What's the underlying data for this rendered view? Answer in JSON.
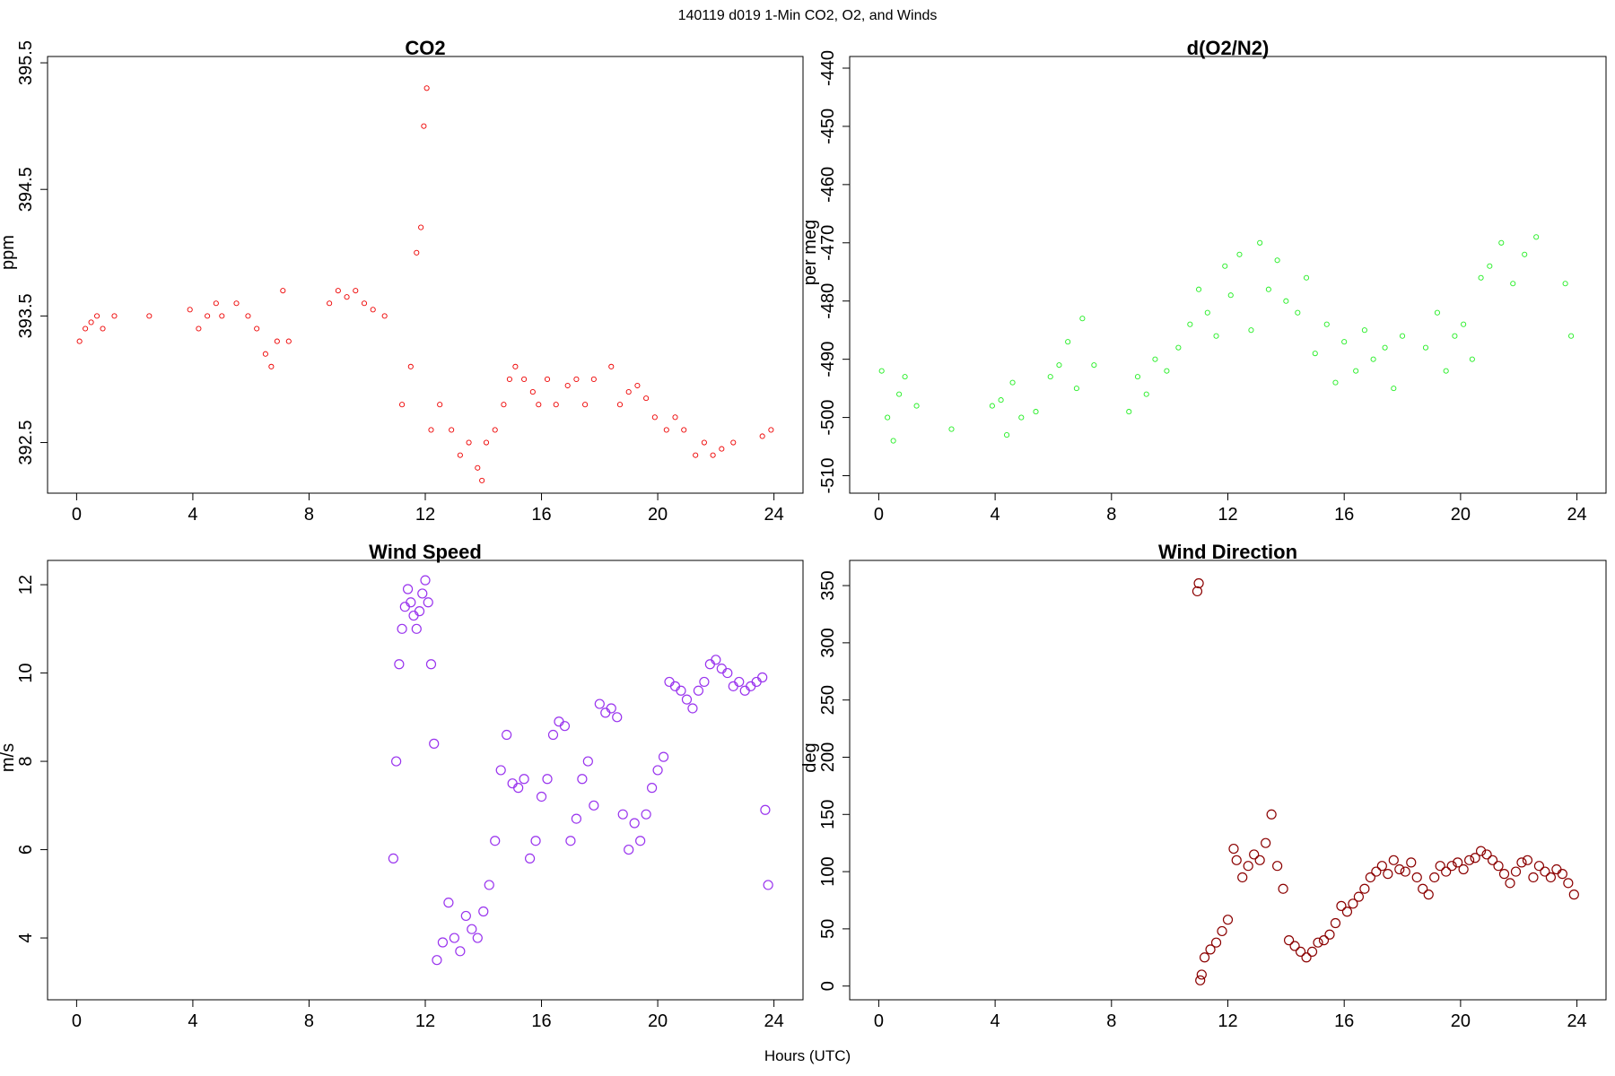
{
  "figure": {
    "title": "140119   d019   1-Min CO2, O2, and Winds",
    "xlabel": "Hours (UTC)"
  },
  "chart_data": [
    {
      "id": "co2",
      "type": "scatter",
      "title": "CO2",
      "ylabel": "ppm",
      "xlabel": "",
      "xlim": [
        -1,
        25
      ],
      "ylim": [
        392.1,
        395.55
      ],
      "xticks": [
        0,
        4,
        8,
        12,
        16,
        20,
        24
      ],
      "yticks": [
        392.5,
        393.5,
        394.5,
        395.5
      ],
      "color": "#ee0000",
      "grid": false,
      "x": [
        0.1,
        0.3,
        0.5,
        0.7,
        0.9,
        1.3,
        2.5,
        3.9,
        4.2,
        4.5,
        4.8,
        5.0,
        5.5,
        5.9,
        6.2,
        6.5,
        6.7,
        6.9,
        7.1,
        7.3,
        8.7,
        9.0,
        9.3,
        9.6,
        9.9,
        10.2,
        10.6,
        11.2,
        11.5,
        11.7,
        11.85,
        11.95,
        12.05,
        12.2,
        12.5,
        12.9,
        13.2,
        13.5,
        13.8,
        13.95,
        14.1,
        14.4,
        14.7,
        14.9,
        15.1,
        15.4,
        15.7,
        15.9,
        16.2,
        16.5,
        16.9,
        17.2,
        17.5,
        17.8,
        18.4,
        18.7,
        19.0,
        19.3,
        19.6,
        19.9,
        20.3,
        20.6,
        20.9,
        21.3,
        21.6,
        21.9,
        22.2,
        22.6,
        23.6,
        23.9
      ],
      "y": [
        393.3,
        393.4,
        393.45,
        393.5,
        393.4,
        393.5,
        393.5,
        393.55,
        393.4,
        393.5,
        393.6,
        393.5,
        393.6,
        393.5,
        393.4,
        393.2,
        393.1,
        393.3,
        393.7,
        393.3,
        393.6,
        393.7,
        393.65,
        393.7,
        393.6,
        393.55,
        393.5,
        392.8,
        393.1,
        394.0,
        394.2,
        395.0,
        395.3,
        392.6,
        392.8,
        392.6,
        392.4,
        392.5,
        392.3,
        392.2,
        392.5,
        392.6,
        392.8,
        393.0,
        393.1,
        393.0,
        392.9,
        392.8,
        393.0,
        392.8,
        392.95,
        393.0,
        392.8,
        393.0,
        393.1,
        392.8,
        392.9,
        392.95,
        392.85,
        392.7,
        392.6,
        392.7,
        392.6,
        392.4,
        392.5,
        392.4,
        392.45,
        392.5,
        392.55,
        392.6
      ]
    },
    {
      "id": "o2",
      "type": "scatter",
      "title": "d(O2/N2)",
      "ylabel": "per meg",
      "xlabel": "",
      "xlim": [
        -1,
        25
      ],
      "ylim": [
        -513,
        -438
      ],
      "xticks": [
        0,
        4,
        8,
        12,
        16,
        20,
        24
      ],
      "yticks": [
        -510,
        -500,
        -490,
        -480,
        -470,
        -460,
        -450,
        -440
      ],
      "color": "#22ee22",
      "grid": false,
      "x": [
        0.1,
        0.3,
        0.5,
        0.7,
        0.9,
        1.3,
        2.5,
        3.9,
        4.2,
        4.4,
        4.6,
        4.9,
        5.4,
        5.9,
        6.2,
        6.5,
        6.8,
        7.0,
        7.4,
        8.6,
        8.9,
        9.2,
        9.5,
        9.9,
        10.3,
        10.7,
        11.0,
        11.3,
        11.6,
        11.9,
        12.1,
        12.4,
        12.8,
        13.1,
        13.4,
        13.7,
        14.0,
        14.4,
        14.7,
        15.0,
        15.4,
        15.7,
        16.0,
        16.4,
        16.7,
        17.0,
        17.4,
        17.7,
        18.0,
        18.8,
        19.2,
        19.5,
        19.8,
        20.1,
        20.4,
        20.7,
        21.0,
        21.4,
        21.8,
        22.2,
        22.6,
        23.6,
        23.8
      ],
      "y": [
        -492,
        -500,
        -504,
        -496,
        -493,
        -498,
        -502,
        -498,
        -497,
        -503,
        -494,
        -500,
        -499,
        -493,
        -491,
        -487,
        -495,
        -483,
        -491,
        -499,
        -493,
        -496,
        -490,
        -492,
        -488,
        -484,
        -478,
        -482,
        -486,
        -474,
        -479,
        -472,
        -485,
        -470,
        -478,
        -473,
        -480,
        -482,
        -476,
        -489,
        -484,
        -494,
        -487,
        -492,
        -485,
        -490,
        -488,
        -495,
        -486,
        -488,
        -482,
        -492,
        -486,
        -484,
        -490,
        -476,
        -474,
        -470,
        -477,
        -472,
        -469,
        -477,
        -486
      ]
    },
    {
      "id": "windspeed",
      "type": "scatter",
      "title": "Wind Speed",
      "ylabel": "m/s",
      "xlabel": "",
      "xlim": [
        -1,
        25
      ],
      "ylim": [
        2.6,
        12.55
      ],
      "xticks": [
        0,
        4,
        8,
        12,
        16,
        20,
        24
      ],
      "yticks": [
        4,
        6,
        8,
        10,
        12
      ],
      "color": "#9933ee",
      "grid": false,
      "x": [
        10.9,
        11.0,
        11.1,
        11.2,
        11.3,
        11.4,
        11.5,
        11.6,
        11.7,
        11.8,
        11.9,
        12.0,
        12.1,
        12.2,
        12.3,
        12.4,
        12.6,
        12.8,
        13.0,
        13.2,
        13.4,
        13.6,
        13.8,
        14.0,
        14.2,
        14.4,
        14.6,
        14.8,
        15.0,
        15.2,
        15.4,
        15.6,
        15.8,
        16.0,
        16.2,
        16.4,
        16.6,
        16.8,
        17.0,
        17.2,
        17.4,
        17.6,
        17.8,
        18.0,
        18.2,
        18.4,
        18.6,
        18.8,
        19.0,
        19.2,
        19.4,
        19.6,
        19.8,
        20.0,
        20.2,
        20.4,
        20.6,
        20.8,
        21.0,
        21.2,
        21.4,
        21.6,
        21.8,
        22.0,
        22.2,
        22.4,
        22.6,
        22.8,
        23.0,
        23.2,
        23.4,
        23.6,
        23.7,
        23.8
      ],
      "y": [
        5.8,
        8.0,
        10.2,
        11.0,
        11.5,
        11.9,
        11.6,
        11.3,
        11.0,
        11.4,
        11.8,
        12.1,
        11.6,
        10.2,
        8.4,
        3.5,
        3.9,
        4.8,
        4.0,
        3.7,
        4.5,
        4.2,
        4.0,
        4.6,
        5.2,
        6.2,
        7.8,
        8.6,
        7.5,
        7.4,
        7.6,
        5.8,
        6.2,
        7.2,
        7.6,
        8.6,
        8.9,
        8.8,
        6.2,
        6.7,
        7.6,
        8.0,
        7.0,
        9.3,
        9.1,
        9.2,
        9.0,
        6.8,
        6.0,
        6.6,
        6.2,
        6.8,
        7.4,
        7.8,
        8.1,
        9.8,
        9.7,
        9.6,
        9.4,
        9.2,
        9.6,
        9.8,
        10.2,
        10.3,
        10.1,
        10.0,
        9.7,
        9.8,
        9.6,
        9.7,
        9.8,
        9.9,
        6.9,
        5.2
      ],
      "annotations": []
    },
    {
      "id": "winddir",
      "type": "scatter",
      "title": "Wind Direction",
      "ylabel": "deg",
      "xlabel": "",
      "xlim": [
        -1,
        25
      ],
      "ylim": [
        -12,
        372
      ],
      "xticks": [
        0,
        4,
        8,
        12,
        16,
        20,
        24
      ],
      "yticks": [
        0,
        50,
        100,
        150,
        200,
        250,
        300,
        350
      ],
      "color": "#8b0000",
      "grid": false,
      "x": [
        10.95,
        11.0,
        11.05,
        11.1,
        11.2,
        11.4,
        11.6,
        11.8,
        12.0,
        12.2,
        12.3,
        12.5,
        12.7,
        12.9,
        13.1,
        13.3,
        13.5,
        13.7,
        13.9,
        14.1,
        14.3,
        14.5,
        14.7,
        14.9,
        15.1,
        15.3,
        15.5,
        15.7,
        15.9,
        16.1,
        16.3,
        16.5,
        16.7,
        16.9,
        17.1,
        17.3,
        17.5,
        17.7,
        17.9,
        18.1,
        18.3,
        18.5,
        18.7,
        18.9,
        19.1,
        19.3,
        19.5,
        19.7,
        19.9,
        20.1,
        20.3,
        20.5,
        20.7,
        20.9,
        21.1,
        21.3,
        21.5,
        21.7,
        21.9,
        22.1,
        22.3,
        22.5,
        22.7,
        22.9,
        23.1,
        23.3,
        23.5,
        23.7,
        23.9
      ],
      "y": [
        345,
        352,
        5,
        10,
        25,
        32,
        38,
        48,
        58,
        120,
        110,
        95,
        105,
        115,
        110,
        125,
        150,
        105,
        85,
        40,
        35,
        30,
        25,
        30,
        38,
        40,
        45,
        55,
        70,
        65,
        72,
        78,
        85,
        95,
        100,
        105,
        98,
        110,
        102,
        100,
        108,
        95,
        85,
        80,
        95,
        105,
        100,
        105,
        108,
        102,
        110,
        112,
        118,
        115,
        110,
        105,
        98,
        90,
        100,
        108,
        110,
        95,
        105,
        100,
        95,
        102,
        98,
        90,
        80
      ]
    }
  ]
}
